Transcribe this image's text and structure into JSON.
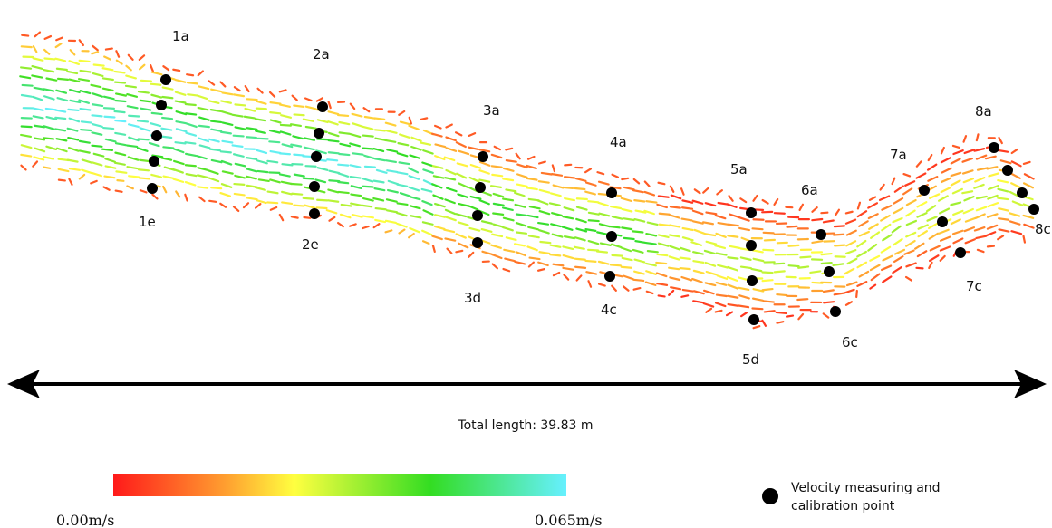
{
  "figure": {
    "total_length_label": "Total length: 39.83 m",
    "colorbar": {
      "min_label": "0.00m/s",
      "max_label": "0.065m/s",
      "min_value": 0.0,
      "max_value": 0.065,
      "unit": "m/s",
      "stops": [
        "#ff1a1a",
        "#ffa030",
        "#ffff40",
        "#33dd22",
        "#66f0ff"
      ]
    },
    "legend": {
      "line1": "Velocity measuring and",
      "line2": "calibration point",
      "marker_icon": "filled-circle-icon"
    },
    "section_labels": [
      "1a",
      "1e",
      "2a",
      "2e",
      "3a",
      "3d",
      "4a",
      "4c",
      "5a",
      "5d",
      "6a",
      "6c",
      "7a",
      "7c",
      "8a",
      "8c"
    ],
    "arrow_icon": "double-headed-arrow-icon"
  }
}
